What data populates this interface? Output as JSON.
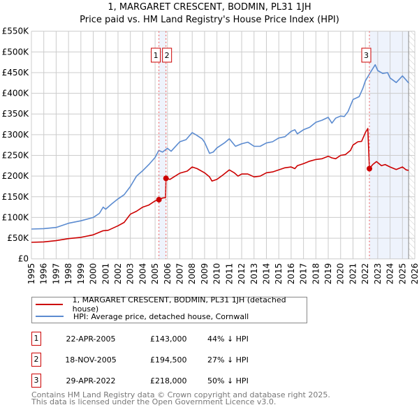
{
  "title_line1": "1, MARGARET CRESCENT, BODMIN, PL31 1JH",
  "title_line2": "Price paid vs. HM Land Registry's House Price Index (HPI)",
  "colors": {
    "property": "#cc0000",
    "hpi": "#5b8bd0",
    "shade": "#eef3fc",
    "grid": "#cccccc"
  },
  "chart_data": {
    "type": "line",
    "title": "Price paid vs. HM Land Registry's House Price Index (HPI)",
    "xlim": [
      1995,
      2026
    ],
    "ylim": [
      0,
      550000
    ],
    "grid": true,
    "x_ticks": [
      "1995",
      "1996",
      "1997",
      "1998",
      "1999",
      "2000",
      "2001",
      "2002",
      "2003",
      "2004",
      "2005",
      "2006",
      "2007",
      "2008",
      "2009",
      "2010",
      "2011",
      "2012",
      "2013",
      "2014",
      "2015",
      "2016",
      "2017",
      "2018",
      "2019",
      "2020",
      "2021",
      "2022",
      "2023",
      "2024",
      "2025",
      "2026"
    ],
    "y_ticks": [
      {
        "v": 0,
        "label": "£0"
      },
      {
        "v": 50000,
        "label": "£50K"
      },
      {
        "v": 100000,
        "label": "£100K"
      },
      {
        "v": 150000,
        "label": "£150K"
      },
      {
        "v": 200000,
        "label": "£200K"
      },
      {
        "v": 250000,
        "label": "£250K"
      },
      {
        "v": 300000,
        "label": "£300K"
      },
      {
        "v": 350000,
        "label": "£350K"
      },
      {
        "v": 400000,
        "label": "£400K"
      },
      {
        "v": 450000,
        "label": "£450K"
      },
      {
        "v": 500000,
        "label": "£500K"
      },
      {
        "v": 550000,
        "label": "£550K"
      }
    ],
    "series": [
      {
        "name": "1, MARGARET CRESCENT, BODMIN, PL31 1JH (detached house)",
        "color": "#cc0000",
        "x": [
          1995,
          1996,
          1997,
          1998,
          1999,
          2000,
          2000.8,
          2001.2,
          2002,
          2002.5,
          2003,
          2003.5,
          2004,
          2004.5,
          2005,
          2005.31,
          2005.6,
          2005.85,
          2005.88,
          2006.2,
          2007,
          2007.6,
          2008,
          2008.4,
          2009,
          2009.4,
          2009.6,
          2010,
          2010.5,
          2011,
          2011.4,
          2011.7,
          2012,
          2012.5,
          2013,
          2013.5,
          2014,
          2014.5,
          2015,
          2015.5,
          2016,
          2016.3,
          2016.5,
          2017,
          2017.5,
          2018,
          2018.5,
          2019,
          2019.3,
          2019.6,
          2020,
          2020.4,
          2020.8,
          2021,
          2021.4,
          2021.7,
          2022,
          2022.2,
          2022.33,
          2022.6,
          2022.9,
          2023.3,
          2023.6,
          2024,
          2024.5,
          2025,
          2025.3,
          2025.5
        ],
        "y": [
          40000,
          41000,
          44000,
          49000,
          52000,
          58000,
          68000,
          69000,
          80000,
          88000,
          108000,
          115000,
          125000,
          130000,
          140000,
          143000,
          147000,
          148000,
          194500,
          192000,
          207000,
          212000,
          222000,
          218000,
          208000,
          198000,
          188000,
          192000,
          203000,
          215000,
          208000,
          200000,
          205000,
          205000,
          198000,
          200000,
          208000,
          210000,
          215000,
          220000,
          222000,
          218000,
          225000,
          230000,
          236000,
          240000,
          242000,
          248000,
          244000,
          242000,
          250000,
          252000,
          262000,
          275000,
          283000,
          284000,
          305000,
          315000,
          218000,
          228000,
          235000,
          225000,
          228000,
          222000,
          216000,
          222000,
          215000,
          214000
        ]
      },
      {
        "name": "HPI: Average price, detached house, Cornwall",
        "color": "#5b8bd0",
        "x": [
          1995,
          1996,
          1997,
          1998,
          1999,
          2000,
          2000.5,
          2000.8,
          2001,
          2001.5,
          2002,
          2002.5,
          2003,
          2003.5,
          2004,
          2004.5,
          2005,
          2005.3,
          2005.6,
          2006,
          2006.3,
          2007,
          2007.5,
          2008,
          2008.3,
          2008.8,
          2009,
          2009.4,
          2009.7,
          2010,
          2010.6,
          2011,
          2011.5,
          2012,
          2012.5,
          2013,
          2013.5,
          2014,
          2014.5,
          2015,
          2015.5,
          2016,
          2016.3,
          2016.5,
          2017,
          2017.5,
          2018,
          2018.5,
          2019,
          2019.3,
          2019.6,
          2020,
          2020.3,
          2020.6,
          2021,
          2021.5,
          2021.8,
          2022,
          2022.4,
          2022.8,
          2023,
          2023.4,
          2023.8,
          2024,
          2024.5,
          2025,
          2025.3,
          2025.5
        ],
        "y": [
          72000,
          73000,
          76000,
          86000,
          92000,
          100000,
          110000,
          125000,
          120000,
          133000,
          145000,
          155000,
          175000,
          200000,
          213000,
          228000,
          245000,
          262000,
          258000,
          267000,
          260000,
          283000,
          288000,
          305000,
          300000,
          290000,
          282000,
          255000,
          258000,
          268000,
          280000,
          290000,
          272000,
          278000,
          282000,
          272000,
          272000,
          280000,
          283000,
          292000,
          295000,
          308000,
          312000,
          302000,
          312000,
          318000,
          330000,
          335000,
          342000,
          328000,
          340000,
          345000,
          344000,
          356000,
          385000,
          392000,
          412000,
          430000,
          450000,
          469000,
          455000,
          448000,
          450000,
          437000,
          426000,
          442000,
          432000,
          425000
        ]
      }
    ],
    "sales": [
      {
        "n": "1",
        "x": 2005.31,
        "y": 143000
      },
      {
        "n": "2",
        "x": 2005.88,
        "y": 194500
      },
      {
        "n": "3",
        "x": 2022.33,
        "y": 218000
      }
    ],
    "shaded": [
      [
        2005.31,
        2005.88
      ],
      [
        2022.33,
        2025.5
      ]
    ],
    "legend_position": "below"
  },
  "legend": [
    {
      "label": "1, MARGARET CRESCENT, BODMIN, PL31 1JH (detached house)"
    },
    {
      "label": "HPI: Average price, detached house, Cornwall"
    }
  ],
  "table": [
    {
      "n": "1",
      "date": "22-APR-2005",
      "price": "£143,000",
      "hpi": "44% ↓ HPI"
    },
    {
      "n": "2",
      "date": "18-NOV-2005",
      "price": "£194,500",
      "hpi": "27% ↓ HPI"
    },
    {
      "n": "3",
      "date": "29-APR-2022",
      "price": "£218,000",
      "hpi": "50% ↓ HPI"
    }
  ],
  "footer_line1": "Contains HM Land Registry data © Crown copyright and database right 2025.",
  "footer_line2": "This data is licensed under the Open Government Licence v3.0."
}
